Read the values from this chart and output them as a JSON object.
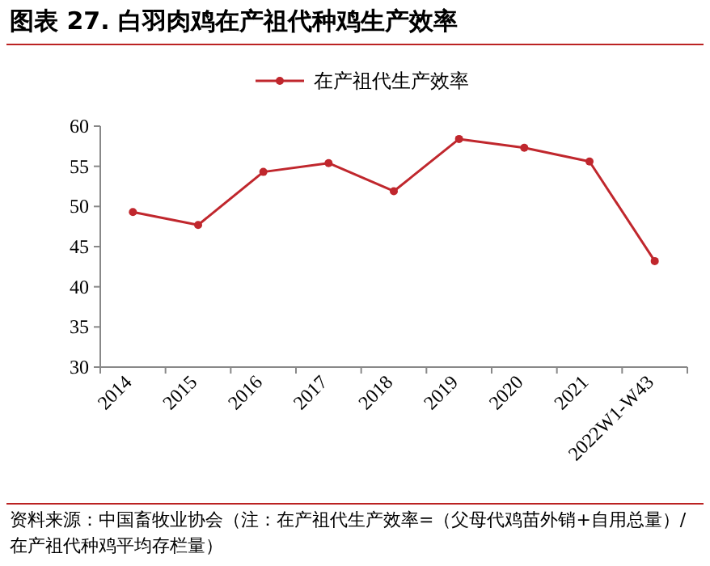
{
  "chart_data": {
    "type": "line",
    "title": "图表 27. 白羽肉鸡在产祖代种鸡生产效率",
    "categories": [
      "2014",
      "2015",
      "2016",
      "2017",
      "2018",
      "2019",
      "2020",
      "2021",
      "2022W1-W43"
    ],
    "series": [
      {
        "name": "在产祖代生产效率",
        "color": "#c0272d",
        "values": [
          49.3,
          47.7,
          54.3,
          55.4,
          51.9,
          58.4,
          57.3,
          55.6,
          43.2
        ]
      }
    ],
    "ylim": [
      30,
      60
    ],
    "yticks": [
      30,
      35,
      40,
      45,
      50,
      55,
      60
    ],
    "legend": "top",
    "marker": "circle",
    "annotations": [
      "资料来源：中国畜牧业协会（注：在产祖代生产效率=（父母代鸡苗外销+自用总量）/在产祖代种鸡平均存栏量）"
    ]
  }
}
